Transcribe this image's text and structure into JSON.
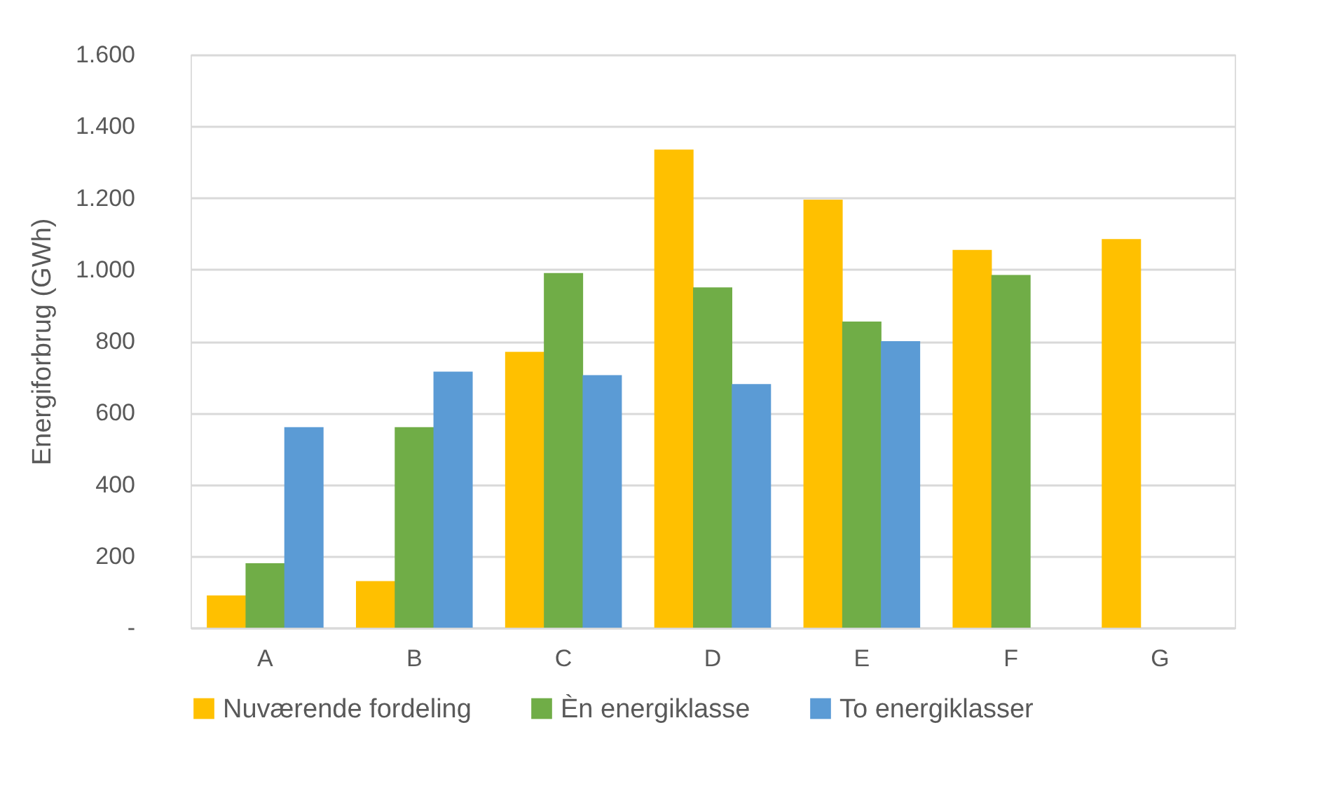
{
  "chart_data": {
    "type": "bar",
    "ylabel": "Energiforbrug (GWh)",
    "categories": [
      "A",
      "B",
      "C",
      "D",
      "E",
      "F",
      "G"
    ],
    "series": [
      {
        "name": "Nuværende fordeling",
        "color": "#ffc000",
        "values": [
          90,
          130,
          770,
          1335,
          1195,
          1055,
          1085
        ]
      },
      {
        "name": "Èn energiklasse",
        "color": "#70ad47",
        "values": [
          180,
          560,
          990,
          950,
          855,
          985,
          null
        ]
      },
      {
        "name": "To energiklasser",
        "color": "#5b9bd5",
        "values": [
          560,
          715,
          705,
          680,
          800,
          null,
          null
        ]
      }
    ],
    "ylim": [
      0,
      1600
    ],
    "yticks": [
      {
        "value": 0,
        "label": "-"
      },
      {
        "value": 200,
        "label": "200"
      },
      {
        "value": 400,
        "label": "400"
      },
      {
        "value": 600,
        "label": "600"
      },
      {
        "value": 800,
        "label": "800"
      },
      {
        "value": 1000,
        "label": "1.000"
      },
      {
        "value": 1200,
        "label": "1.200"
      },
      {
        "value": 1400,
        "label": "1.400"
      },
      {
        "value": 1600,
        "label": "1.600"
      }
    ],
    "grid": "y",
    "legend": "bottom"
  }
}
